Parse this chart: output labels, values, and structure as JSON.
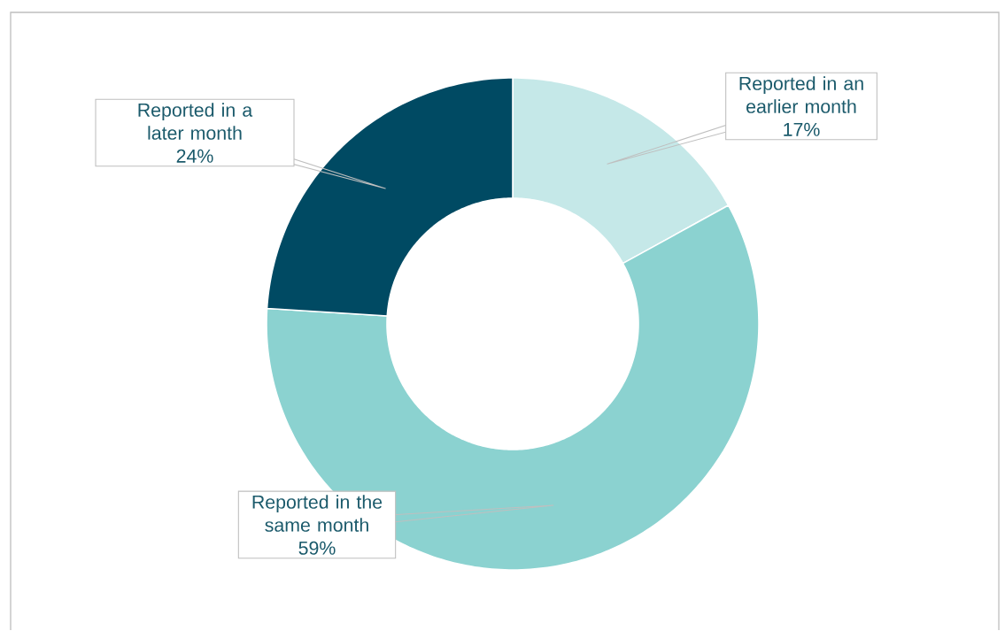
{
  "chart_data": {
    "type": "donut",
    "categories": [
      "Reported in an earlier month",
      "Reported in the same month",
      "Reported in a later month"
    ],
    "values": [
      17,
      59,
      24
    ],
    "value_labels": [
      "17%",
      "59%",
      "24%"
    ],
    "colors": [
      "#c5e8e8",
      "#8bd2d0",
      "#004a63"
    ]
  }
}
